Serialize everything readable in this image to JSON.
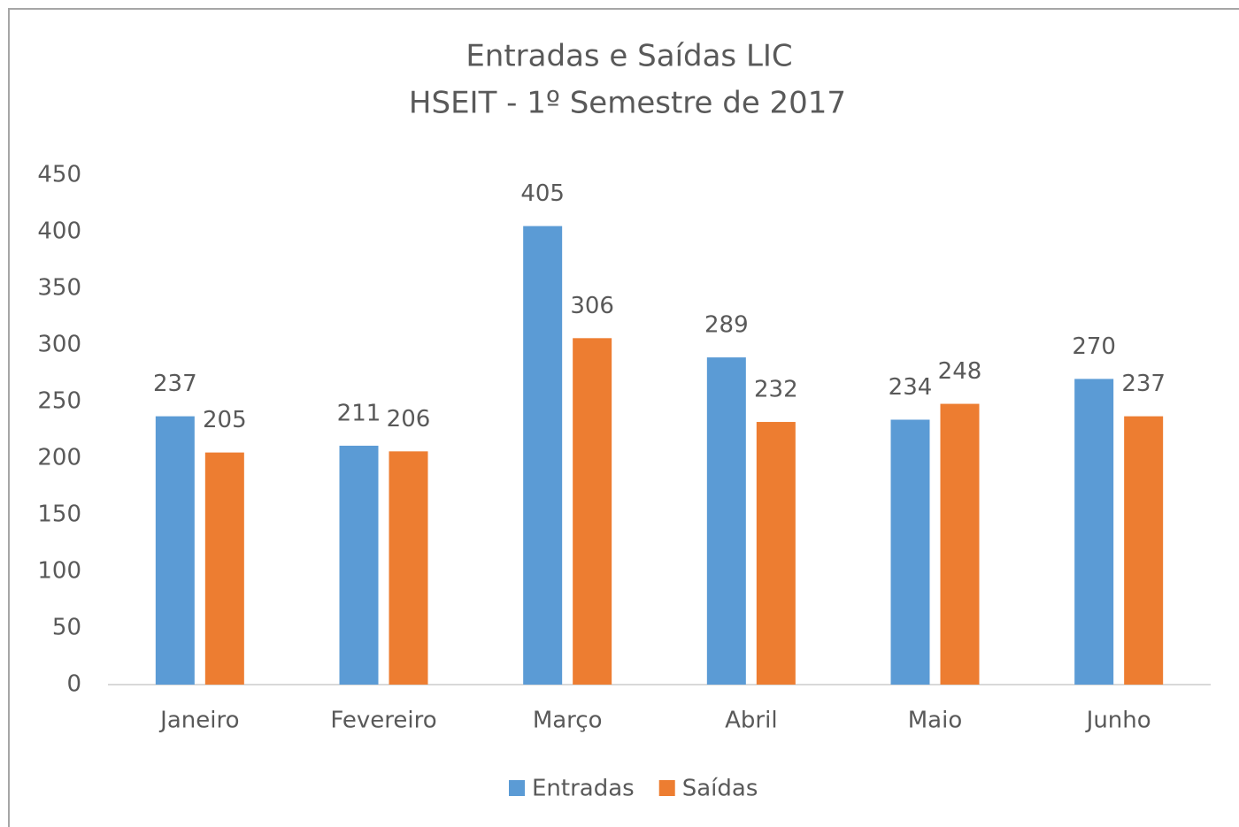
{
  "chart_data": {
    "type": "bar",
    "title": "Entradas e Saídas LIC",
    "subtitle": "HSEIT - 1º Semestre de 2017",
    "categories": [
      "Janeiro",
      "Fevereiro",
      "Março",
      "Abril",
      "Maio",
      "Junho"
    ],
    "series": [
      {
        "name": "Entradas",
        "color": "#5b9bd5",
        "values": [
          237,
          211,
          405,
          289,
          234,
          270
        ]
      },
      {
        "name": "Saídas",
        "color": "#ed7d31",
        "values": [
          205,
          206,
          306,
          232,
          248,
          237
        ]
      }
    ],
    "ylim": [
      0,
      450
    ],
    "yticks": [
      0,
      50,
      100,
      150,
      200,
      250,
      300,
      350,
      400,
      450
    ],
    "grid": false,
    "legend": "bottom"
  }
}
